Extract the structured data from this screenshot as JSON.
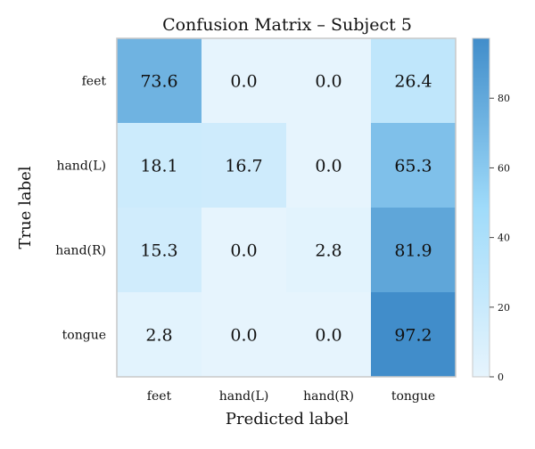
{
  "chart_data": {
    "type": "heatmap",
    "title": "Confusion Matrix – Subject 5",
    "xlabel": "Predicted label",
    "ylabel": "True label",
    "x_categories": [
      "feet",
      "hand(L)",
      "hand(R)",
      "tongue"
    ],
    "y_categories": [
      "feet",
      "hand(L)",
      "hand(R)",
      "tongue"
    ],
    "values": [
      [
        73.6,
        0.0,
        0.0,
        26.4
      ],
      [
        18.1,
        16.7,
        0.0,
        65.3
      ],
      [
        15.3,
        0.0,
        2.8,
        81.9
      ],
      [
        2.8,
        0.0,
        0.0,
        97.2
      ]
    ],
    "value_format": "0.0",
    "colorbar": {
      "min": 0,
      "max": 97.2,
      "ticks": [
        0,
        20,
        40,
        60,
        80
      ]
    },
    "colors": {
      "low": "#e6f4fd",
      "mid": "#9fdbfa",
      "high": "#418dca"
    }
  }
}
